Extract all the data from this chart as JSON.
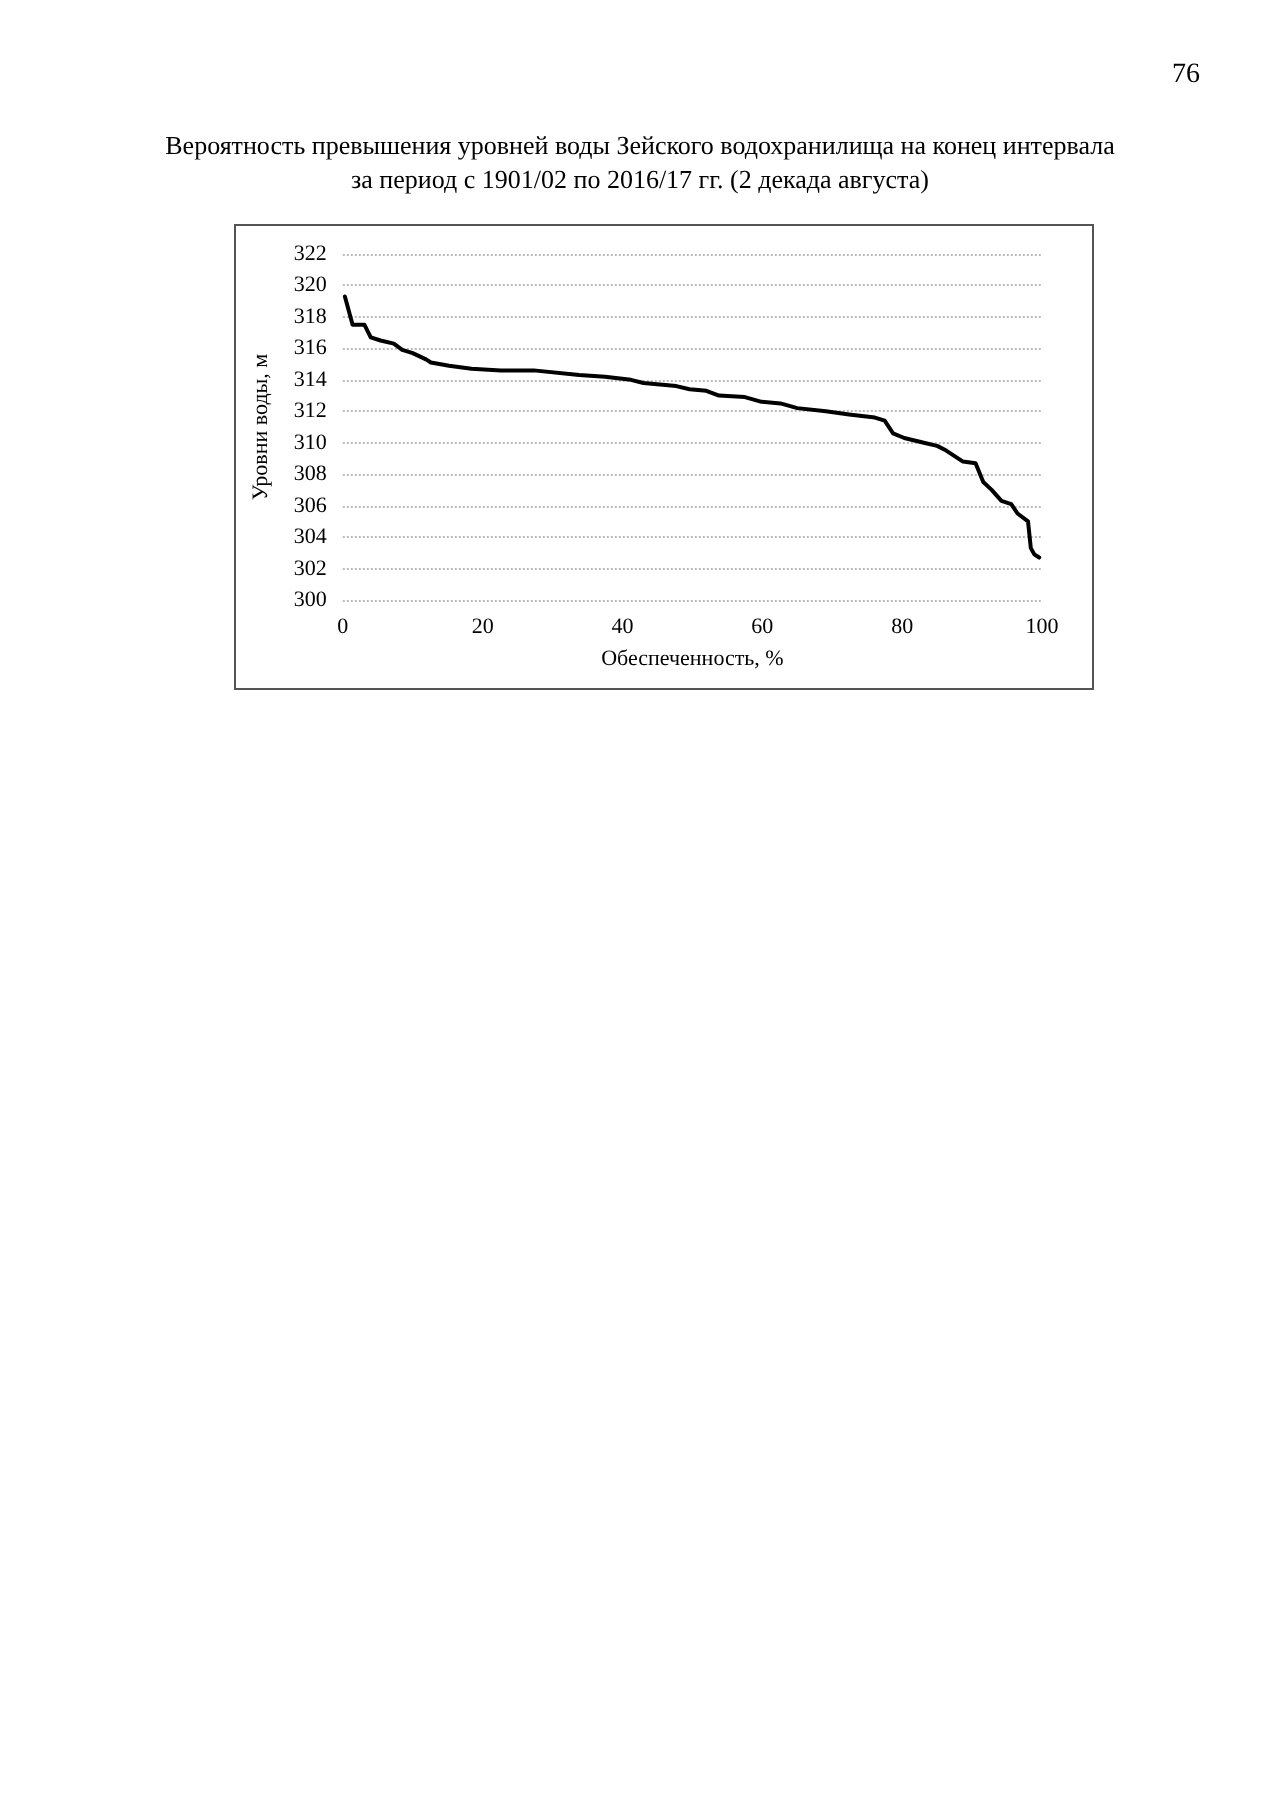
{
  "chart_data": {
    "type": "line",
    "title": "Вероятность превышения уровней воды Зейского водохранилища на конец интервала",
    "subtitle": "за период с 1901/02 по 2016/17 гг. (2 декада августа)",
    "xlabel": "Обеспеченность, %",
    "ylabel": "Уровни воды, м",
    "annotations": [
      "76"
    ],
    "series": [
      {
        "color": "#000000",
        "x": [
          0.3,
          1.4,
          3.1,
          4.0,
          5.4,
          7.3,
          8.5,
          10,
          11.9,
          12.6,
          15.2,
          18.4,
          22.6,
          27.3,
          33.8,
          37.5,
          41.2,
          43,
          47.7,
          49.6,
          52,
          53.8,
          57.5,
          59.9,
          62.6,
          65,
          69.1,
          72.4,
          76.1,
          77.5,
          78.7,
          80.3,
          83.1,
          85,
          86.3,
          88.7,
          90.5,
          91.6,
          92.8,
          94.2,
          95.6,
          96.5,
          98,
          98.4,
          98.9,
          99.6
        ],
        "values": [
          319.3,
          317.5,
          317.5,
          316.7,
          316.5,
          316.3,
          315.9,
          315.7,
          315.3,
          315.1,
          314.9,
          314.7,
          314.6,
          314.6,
          314.3,
          314.2,
          314.0,
          313.8,
          313.6,
          313.4,
          313.3,
          313.0,
          312.9,
          312.6,
          312.5,
          312.2,
          312.0,
          311.8,
          311.6,
          311.4,
          310.6,
          310.3,
          310.0,
          309.8,
          309.5,
          308.8,
          308.7,
          307.5,
          307.0,
          306.3,
          306.1,
          305.5,
          305.0,
          303.3,
          302.9,
          302.7
        ]
      }
    ],
    "xlim": [
      0,
      100
    ],
    "xticks": [
      0,
      20,
      40,
      60,
      80,
      100
    ],
    "ylim": [
      300,
      322
    ],
    "yticks": [
      300,
      302,
      304,
      306,
      308,
      310,
      312,
      314,
      316,
      318,
      320,
      322
    ],
    "grid": "y",
    "marker": "none",
    "line_style": "solid"
  }
}
